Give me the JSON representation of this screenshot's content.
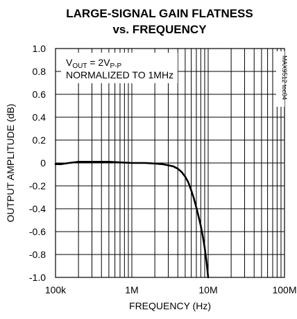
{
  "chart_data": {
    "type": "line",
    "title_line1": "LARGE-SIGNAL GAIN FLATNESS",
    "title_line2": "vs. FREQUENCY",
    "xlabel": "FREQUENCY (Hz)",
    "ylabel": "OUTPUT AMPLITUDE (dB)",
    "x_scale": "log",
    "xlim": [
      100000,
      100000000
    ],
    "ylim": [
      -1.0,
      1.0
    ],
    "x_ticks": [
      {
        "value": 100000,
        "label": "100k"
      },
      {
        "value": 1000000,
        "label": "1M"
      },
      {
        "value": 10000000,
        "label": "10M"
      },
      {
        "value": 100000000,
        "label": "100M"
      }
    ],
    "y_ticks": [
      {
        "value": 1.0,
        "label": "1.0"
      },
      {
        "value": 0.8,
        "label": "0.8"
      },
      {
        "value": 0.6,
        "label": "0.6"
      },
      {
        "value": 0.4,
        "label": "0.4"
      },
      {
        "value": 0.2,
        "label": "0.2"
      },
      {
        "value": 0.0,
        "label": "0"
      },
      {
        "value": -0.2,
        "label": "-0.2"
      },
      {
        "value": -0.4,
        "label": "-0.4"
      },
      {
        "value": -0.6,
        "label": "-0.6"
      },
      {
        "value": -0.8,
        "label": "-0.8"
      },
      {
        "value": -1.0,
        "label": "-1.0"
      }
    ],
    "grid": true,
    "annotation": {
      "line1_main": "V",
      "line1_sub": "OUT",
      "line1_rest": " = 2V",
      "line1_sub2": "P-P",
      "line2": "NORMALIZED TO 1MHz"
    },
    "figure_code": "MAX9512 toc04",
    "series": [
      {
        "x": [
          100000,
          120000,
          150000,
          200000,
          300000,
          400000,
          500000,
          700000,
          1000000,
          1500000,
          2000000,
          2500000,
          3000000,
          3500000,
          4000000,
          4500000,
          5000000,
          5500000,
          6000000,
          6500000,
          7000000,
          7500000,
          8000000,
          8500000,
          9000000,
          9500000,
          10000000
        ],
        "y": [
          -0.01,
          -0.01,
          0.0,
          0.01,
          0.01,
          0.01,
          0.01,
          0.005,
          0.0,
          0.0,
          -0.005,
          -0.01,
          -0.02,
          -0.03,
          -0.05,
          -0.08,
          -0.12,
          -0.17,
          -0.24,
          -0.31,
          -0.39,
          -0.47,
          -0.55,
          -0.64,
          -0.74,
          -0.86,
          -1.0
        ]
      }
    ]
  }
}
